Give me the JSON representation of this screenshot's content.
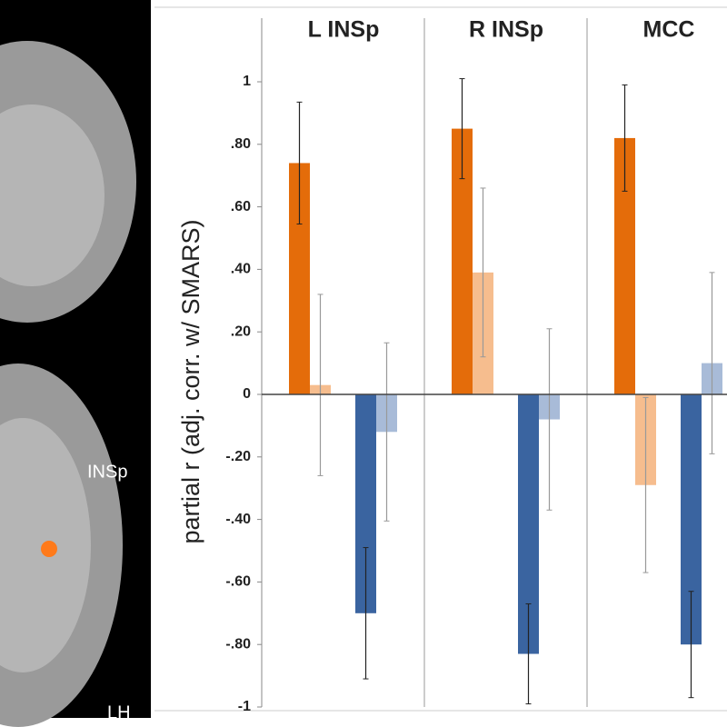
{
  "chart_data": {
    "type": "bar",
    "ylabel": "partial r (adj. corr. w/ SMARS)",
    "categories": [
      "L INSp",
      "R INSp",
      "MCC"
    ],
    "annotations": [
      "INSp",
      "LH"
    ],
    "ylim": [
      -1,
      1.0
    ],
    "yticks": [
      1,
      {
        "value": 0.8,
        "label": ".80"
      },
      {
        "value": 0.6,
        "label": ".60"
      },
      {
        "value": 0.4,
        "label": ".40"
      },
      {
        "value": 0.2,
        "label": ".20"
      },
      0,
      {
        "value": -0.2,
        "label": "-.20"
      },
      {
        "value": -0.4,
        "label": "-.40"
      },
      {
        "value": -0.6,
        "label": "-.60"
      },
      {
        "value": -0.8,
        "label": "-.80"
      },
      -1
    ],
    "series": [
      {
        "color": "#e46c0a",
        "values": [
          0.74,
          0.85,
          0.82
        ],
        "errors": [
          0.195,
          0.16,
          0.17
        ]
      },
      {
        "color": "#f6bd8e",
        "values": [
          0.03,
          0.39,
          -0.29
        ],
        "errors": [
          0.29,
          0.27,
          0.28
        ]
      },
      {
        "color": "#3a64a0",
        "values": [
          -0.7,
          -0.83,
          -0.8
        ],
        "errors": [
          0.21,
          0.16,
          0.17
        ]
      },
      {
        "color": "#a8bbd8",
        "values": [
          -0.12,
          -0.08,
          0.1
        ],
        "errors": [
          0.285,
          0.29,
          0.29
        ]
      }
    ]
  }
}
